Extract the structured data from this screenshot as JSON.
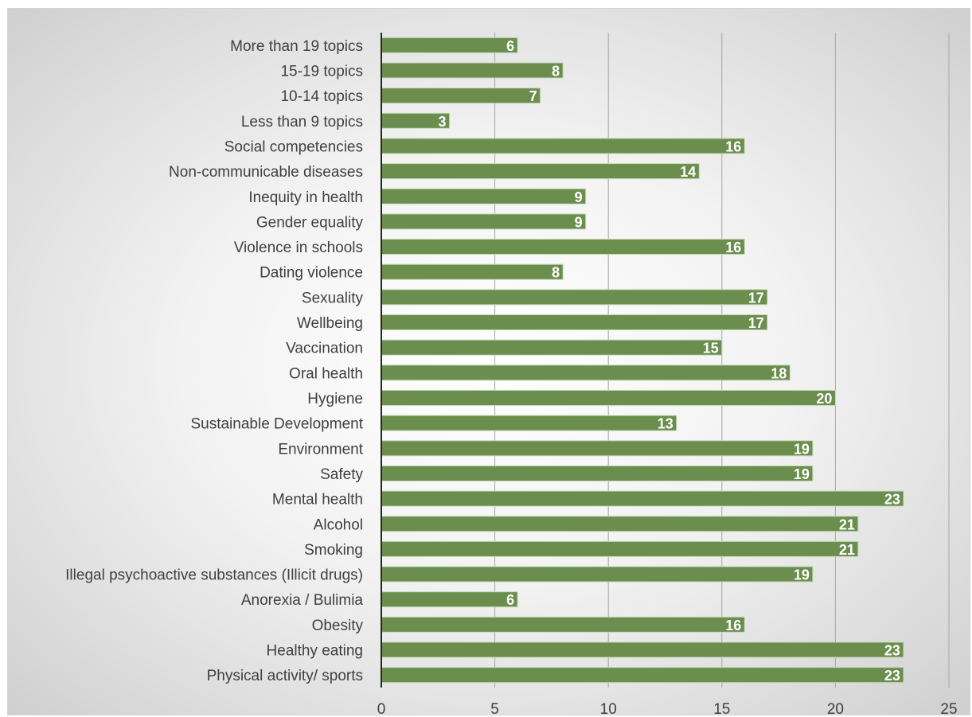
{
  "chart_data": {
    "type": "bar",
    "orientation": "horizontal",
    "title": "",
    "xlabel": "",
    "ylabel": "",
    "xlim": [
      0,
      25
    ],
    "xticks": [
      0,
      5,
      10,
      15,
      20,
      25
    ],
    "grid": "vertical",
    "legend": "none",
    "bar_color": "#6b8e4e",
    "bar_edge_color": "#c5d9b5",
    "label_color": "#ffffff",
    "categories": [
      "More than 19 topics",
      "15-19 topics",
      "10-14 topics",
      "Less than 9 topics",
      "Social competencies",
      "Non-communicable diseases",
      "Inequity in health",
      "Gender equality",
      "Violence in schools",
      "Dating violence",
      "Sexuality",
      "Wellbeing",
      "Vaccination",
      "Oral health",
      "Hygiene",
      "Sustainable Development",
      "Environment",
      "Safety",
      "Mental health",
      "Alcohol",
      "Smoking",
      "Illegal psychoactive substances (Illicit drugs)",
      "Anorexia / Bulimia",
      "Obesity",
      "Healthy eating",
      "Physical activity/ sports"
    ],
    "values": [
      6,
      8,
      7,
      3,
      16,
      14,
      9,
      9,
      16,
      8,
      17,
      17,
      15,
      18,
      20,
      13,
      19,
      19,
      23,
      21,
      21,
      19,
      6,
      16,
      23,
      23
    ]
  }
}
